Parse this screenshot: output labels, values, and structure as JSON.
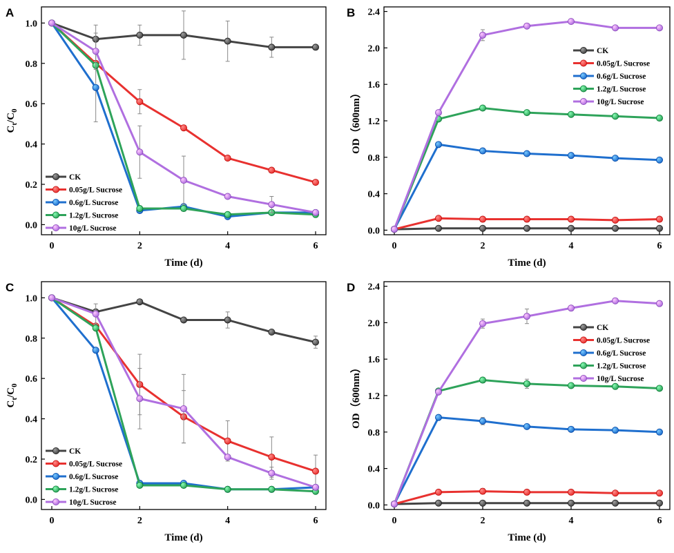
{
  "colors": {
    "CK": "#444444",
    "0.05g/L Sucrose": "#e8312f",
    "0.6g/L Sucrose": "#1f6fce",
    "1.2g/L Sucrose": "#2ea35a",
    "10g/L Sucrose": "#b06fe0"
  },
  "chart_data": [
    {
      "panel": "A",
      "type": "line",
      "xlabel": "Time (d)",
      "ylabel": "Ct/C0",
      "ylabel_main": "C",
      "ylabel_sub1": "t",
      "ylabel_mid": "/C",
      "ylabel_sub2": "0",
      "xlim": [
        0,
        6
      ],
      "ylim": [
        -0.05,
        1.08
      ],
      "xticks": [
        0,
        2,
        4,
        6
      ],
      "yticks": [
        0.0,
        0.2,
        0.4,
        0.6,
        0.8,
        1.0
      ],
      "ytick_labels": [
        "0.0",
        "0.2",
        "0.4",
        "0.6",
        "0.8",
        "1.0"
      ],
      "legend": "bottom-left",
      "x": [
        0,
        1,
        2,
        3,
        4,
        5,
        6
      ],
      "series": [
        {
          "name": "CK",
          "values": [
            1.0,
            0.92,
            0.94,
            0.94,
            0.91,
            0.88,
            0.88
          ],
          "err": [
            0,
            0.07,
            0.05,
            0.12,
            0.1,
            0.05,
            0
          ]
        },
        {
          "name": "0.05g/L Sucrose",
          "values": [
            1.0,
            0.8,
            0.61,
            0.48,
            0.33,
            0.27,
            0.21
          ],
          "err": [
            0,
            0,
            0.06,
            0,
            0,
            0,
            0
          ]
        },
        {
          "name": "0.6g/L Sucrose",
          "values": [
            1.0,
            0.68,
            0.07,
            0.09,
            0.04,
            0.06,
            0.06
          ],
          "err": [
            0,
            0.17,
            0,
            0,
            0,
            0,
            0
          ]
        },
        {
          "name": "1.2g/L Sucrose",
          "values": [
            1.0,
            0.79,
            0.08,
            0.08,
            0.05,
            0.06,
            0.05
          ],
          "err": [
            0,
            0,
            0,
            0,
            0,
            0,
            0
          ]
        },
        {
          "name": "10g/L Sucrose",
          "values": [
            1.0,
            0.86,
            0.36,
            0.22,
            0.14,
            0.1,
            0.06
          ],
          "err": [
            0,
            0.09,
            0.13,
            0.12,
            0,
            0.04,
            0
          ]
        }
      ]
    },
    {
      "panel": "B",
      "type": "line",
      "xlabel": "Time (d)",
      "ylabel": "OD（600nm）",
      "xlim": [
        0,
        6
      ],
      "ylim": [
        -0.05,
        2.45
      ],
      "xticks": [
        0,
        2,
        4,
        6
      ],
      "yticks": [
        0.0,
        0.4,
        0.8,
        1.2,
        1.6,
        2.0,
        2.4
      ],
      "ytick_labels": [
        "0.0",
        "0.4",
        "0.8",
        "1.2",
        "1.6",
        "2.0",
        "2.4"
      ],
      "legend": "top-right",
      "x": [
        0,
        1,
        2,
        3,
        4,
        5,
        6
      ],
      "series": [
        {
          "name": "CK",
          "values": [
            0.01,
            0.02,
            0.02,
            0.02,
            0.02,
            0.02,
            0.02
          ],
          "err": [
            0,
            0,
            0,
            0,
            0,
            0,
            0
          ]
        },
        {
          "name": "0.05g/L Sucrose",
          "values": [
            0.01,
            0.13,
            0.12,
            0.12,
            0.12,
            0.11,
            0.12
          ],
          "err": [
            0,
            0,
            0,
            0,
            0,
            0,
            0
          ]
        },
        {
          "name": "0.6g/L Sucrose",
          "values": [
            0.01,
            0.94,
            0.87,
            0.84,
            0.82,
            0.79,
            0.77
          ],
          "err": [
            0,
            0,
            0,
            0,
            0,
            0,
            0
          ]
        },
        {
          "name": "1.2g/L Sucrose",
          "values": [
            0.01,
            1.22,
            1.34,
            1.29,
            1.27,
            1.25,
            1.23
          ],
          "err": [
            0,
            0,
            0,
            0,
            0,
            0,
            0
          ]
        },
        {
          "name": "10g/L Sucrose",
          "values": [
            0.01,
            1.29,
            2.14,
            2.24,
            2.29,
            2.22,
            2.22
          ],
          "err": [
            0,
            0,
            0.06,
            0,
            0,
            0,
            0
          ]
        }
      ]
    },
    {
      "panel": "C",
      "type": "line",
      "xlabel": "Time (d)",
      "ylabel": "Ct/C0",
      "ylabel_main": "C",
      "ylabel_sub1": "t",
      "ylabel_mid": "/C",
      "ylabel_sub2": "0",
      "xlim": [
        0,
        6
      ],
      "ylim": [
        -0.05,
        1.08
      ],
      "xticks": [
        0,
        2,
        4,
        6
      ],
      "yticks": [
        0.0,
        0.2,
        0.4,
        0.6,
        0.8,
        1.0
      ],
      "ytick_labels": [
        "0.0",
        "0.2",
        "0.4",
        "0.6",
        "0.8",
        "1.0"
      ],
      "legend": "bottom-left",
      "x": [
        0,
        1,
        2,
        3,
        4,
        5,
        6
      ],
      "series": [
        {
          "name": "CK",
          "values": [
            1.0,
            0.93,
            0.98,
            0.89,
            0.89,
            0.83,
            0.78
          ],
          "err": [
            0,
            0,
            0,
            0,
            0.04,
            0,
            0.03
          ]
        },
        {
          "name": "0.05g/L Sucrose",
          "values": [
            1.0,
            0.86,
            0.57,
            0.41,
            0.29,
            0.21,
            0.14
          ],
          "err": [
            0,
            0,
            0.15,
            0.13,
            0.1,
            0.1,
            0.08
          ]
        },
        {
          "name": "0.6g/L Sucrose",
          "values": [
            1.0,
            0.74,
            0.08,
            0.08,
            0.05,
            0.05,
            0.06
          ],
          "err": [
            0,
            0,
            0,
            0,
            0,
            0,
            0
          ]
        },
        {
          "name": "1.2g/L Sucrose",
          "values": [
            1.0,
            0.85,
            0.07,
            0.07,
            0.05,
            0.05,
            0.04
          ],
          "err": [
            0,
            0,
            0,
            0,
            0,
            0,
            0
          ]
        },
        {
          "name": "10g/L Sucrose",
          "values": [
            1.0,
            0.92,
            0.5,
            0.45,
            0.21,
            0.13,
            0.06
          ],
          "err": [
            0,
            0.05,
            0.15,
            0.17,
            0,
            0.03,
            0
          ]
        }
      ]
    },
    {
      "panel": "D",
      "type": "line",
      "xlabel": "Time (d)",
      "ylabel": "OD（600nm）",
      "xlim": [
        0,
        6
      ],
      "ylim": [
        -0.05,
        2.45
      ],
      "xticks": [
        0,
        2,
        4,
        6
      ],
      "yticks": [
        0.0,
        0.4,
        0.8,
        1.2,
        1.6,
        2.0,
        2.4
      ],
      "ytick_labels": [
        "0.0",
        "0.4",
        "0.8",
        "1.2",
        "1.6",
        "2.0",
        "2.4"
      ],
      "legend": "top-right",
      "x": [
        0,
        1,
        2,
        3,
        4,
        5,
        6
      ],
      "series": [
        {
          "name": "CK",
          "values": [
            0.01,
            0.02,
            0.02,
            0.02,
            0.02,
            0.02,
            0.02
          ],
          "err": [
            0,
            0,
            0,
            0,
            0,
            0,
            0
          ]
        },
        {
          "name": "0.05g/L Sucrose",
          "values": [
            0.01,
            0.14,
            0.15,
            0.14,
            0.14,
            0.13,
            0.13
          ],
          "err": [
            0,
            0,
            0.03,
            0,
            0,
            0,
            0
          ]
        },
        {
          "name": "0.6g/L Sucrose",
          "values": [
            0.01,
            0.96,
            0.92,
            0.86,
            0.83,
            0.82,
            0.8
          ],
          "err": [
            0,
            0,
            0.04,
            0,
            0,
            0,
            0
          ]
        },
        {
          "name": "1.2g/L Sucrose",
          "values": [
            0.01,
            1.25,
            1.37,
            1.33,
            1.31,
            1.3,
            1.28
          ],
          "err": [
            0,
            0,
            0,
            0.05,
            0,
            0,
            0
          ]
        },
        {
          "name": "10g/L Sucrose",
          "values": [
            0.01,
            1.24,
            1.99,
            2.07,
            2.16,
            2.24,
            2.21
          ],
          "err": [
            0,
            0,
            0.05,
            0.08,
            0,
            0,
            0
          ]
        }
      ]
    }
  ]
}
